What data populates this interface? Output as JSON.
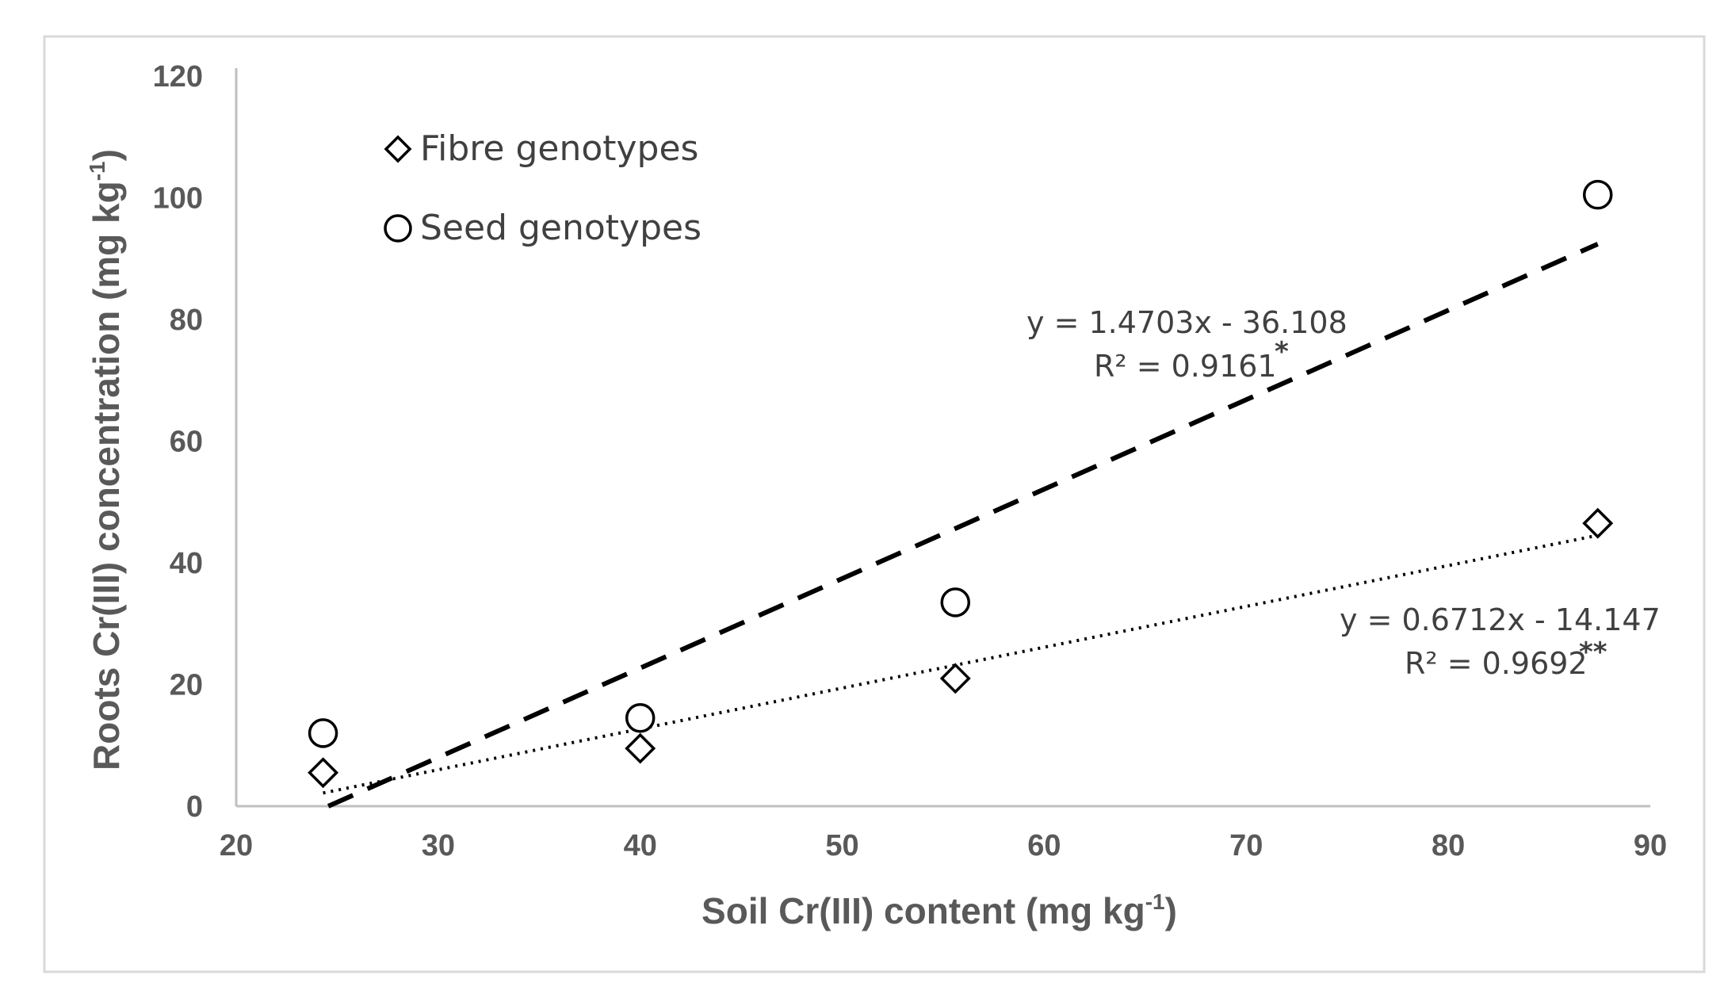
{
  "chart_data": {
    "type": "scatter",
    "xlabel": "Soil Cr(III) content (mg kg",
    "xlabel_sup": "-1",
    "xlabel_end": ")",
    "ylabel": "Roots Cr(III) concentration (mg kg",
    "ylabel_sup": "-1",
    "ylabel_end": ")",
    "xlim": [
      20,
      90
    ],
    "ylim": [
      0,
      120
    ],
    "x_ticks": [
      20,
      30,
      40,
      50,
      60,
      70,
      80,
      90
    ],
    "y_ticks": [
      0,
      20,
      40,
      60,
      80,
      100,
      120
    ],
    "legend_position": "top-left",
    "series": [
      {
        "name": "Fibre genotypes",
        "marker": "diamond",
        "points": [
          [
            24.3,
            5.5
          ],
          [
            40.0,
            9.5
          ],
          [
            55.6,
            21.0
          ],
          [
            87.4,
            46.5
          ]
        ],
        "trend": {
          "style": "dotted",
          "slope": 0.6712,
          "intercept": -14.147,
          "x_range": [
            24.3,
            87.4
          ]
        },
        "equation": "y = 0.6712x - 14.147",
        "r2": "R² = 0.9692",
        "significance": "**"
      },
      {
        "name": "Seed genotypes",
        "marker": "circle",
        "points": [
          [
            24.3,
            12.0
          ],
          [
            40.0,
            14.5
          ],
          [
            55.6,
            33.5
          ],
          [
            87.4,
            100.5
          ]
        ],
        "trend": {
          "style": "dashed",
          "slope": 1.4703,
          "intercept": -36.108,
          "x_range": [
            24.3,
            87.4
          ]
        },
        "equation": "y = 1.4703x - 36.108",
        "r2": "R² = 0.9161",
        "significance": "*"
      }
    ]
  }
}
